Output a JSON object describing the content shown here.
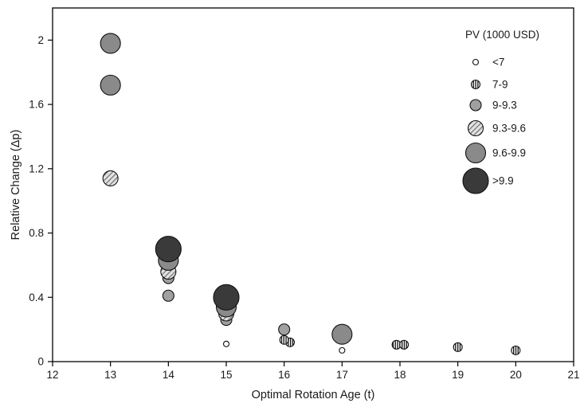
{
  "figure": {
    "x_axis_label": "Optimal Rotation Age (t)",
    "y_axis_label": "Relative Change (Δp)",
    "legend_title": "PV (1000 USD)"
  },
  "chart_data": {
    "type": "scatter",
    "title": "",
    "xlabel": "Optimal Rotation Age (t)",
    "ylabel": "Relative Change (Δp)",
    "xlim": [
      12,
      21
    ],
    "ylim": [
      0,
      2.2
    ],
    "x_ticks": [
      12,
      13,
      14,
      15,
      16,
      17,
      18,
      19,
      20,
      21
    ],
    "y_ticks": [
      0,
      0.4,
      0.8,
      1.2,
      1.6,
      2
    ],
    "y_tick_labels": [
      "0",
      "0.4",
      "0.8",
      "1.2",
      "1.6",
      "2"
    ],
    "grid": false,
    "legend": {
      "title": "PV (1000 USD)",
      "position": "top-right",
      "entries": [
        {
          "label": "<7",
          "radius": 3.5,
          "fill": "#ffffff",
          "pattern": null
        },
        {
          "label": "7-9",
          "radius": 5.5,
          "fill": "#ffffff",
          "pattern": "vertical-stripes"
        },
        {
          "label": "9-9.3",
          "radius": 7,
          "fill": "#a0a0a0",
          "pattern": null
        },
        {
          "label": "9.3-9.6",
          "radius": 9.5,
          "fill": "#d8d8d8",
          "pattern": "diagonal-hatch"
        },
        {
          "label": "9.6-9.9",
          "radius": 12.5,
          "fill": "#8a8a8a",
          "pattern": null
        },
        {
          "label": ">9.9",
          "radius": 16,
          "fill": "#3a3a3a",
          "pattern": null
        }
      ]
    },
    "points": [
      {
        "x": 13,
        "y": 1.98,
        "pv": "9.6-9.9"
      },
      {
        "x": 13,
        "y": 1.72,
        "pv": "9.6-9.9"
      },
      {
        "x": 13,
        "y": 1.14,
        "pv": "9.3-9.6"
      },
      {
        "x": 14,
        "y": 0.7,
        "pv": ">9.9"
      },
      {
        "x": 14,
        "y": 0.63,
        "pv": "9.6-9.9"
      },
      {
        "x": 14,
        "y": 0.56,
        "pv": "9.3-9.6"
      },
      {
        "x": 14,
        "y": 0.52,
        "pv": "9-9.3"
      },
      {
        "x": 14,
        "y": 0.41,
        "pv": "9-9.3"
      },
      {
        "x": 15,
        "y": 0.4,
        "pv": ">9.9"
      },
      {
        "x": 15,
        "y": 0.34,
        "pv": "9.6-9.9"
      },
      {
        "x": 15,
        "y": 0.3,
        "pv": "9.3-9.6"
      },
      {
        "x": 15,
        "y": 0.26,
        "pv": "9-9.3"
      },
      {
        "x": 15,
        "y": 0.11,
        "pv": "<7"
      },
      {
        "x": 16,
        "y": 0.2,
        "pv": "9-9.3"
      },
      {
        "x": 16,
        "y": 0.135,
        "pv": "7-9"
      },
      {
        "x": 16.1,
        "y": 0.12,
        "pv": "7-9"
      },
      {
        "x": 17,
        "y": 0.17,
        "pv": "9.6-9.9"
      },
      {
        "x": 17,
        "y": 0.07,
        "pv": "<7"
      },
      {
        "x": 17.94,
        "y": 0.105,
        "pv": "7-9"
      },
      {
        "x": 18.07,
        "y": 0.105,
        "pv": "7-9"
      },
      {
        "x": 19,
        "y": 0.09,
        "pv": "7-9"
      },
      {
        "x": 20,
        "y": 0.07,
        "pv": "7-9"
      }
    ]
  }
}
